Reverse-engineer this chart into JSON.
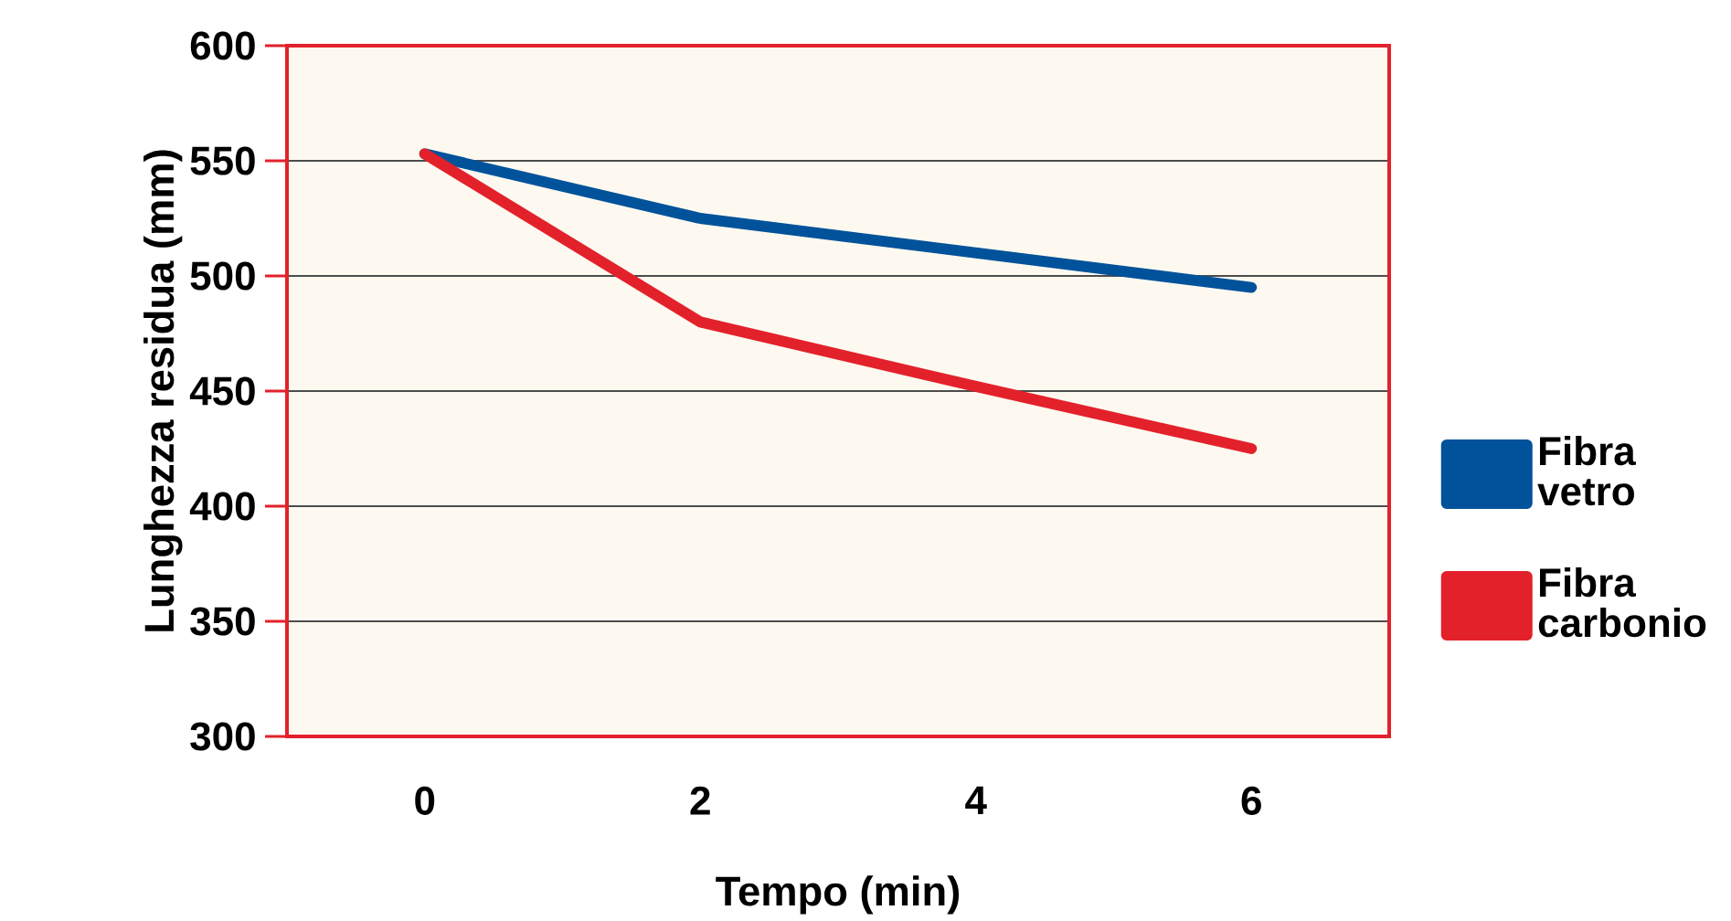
{
  "chart_data": {
    "type": "line",
    "xlabel": "Tempo (min)",
    "ylabel": "Lunghezza residua (mm)",
    "categories": [
      "0",
      "2",
      "4",
      "6"
    ],
    "series": [
      {
        "name": "Fibra vetro",
        "color": "#00529b",
        "values": [
          553,
          525,
          510,
          495
        ]
      },
      {
        "name": "Fibra carbonio",
        "color": "#e3212b",
        "values": [
          553,
          480,
          452,
          425
        ]
      }
    ],
    "ylim": [
      300,
      600
    ],
    "yticks": [
      300,
      350,
      400,
      450,
      500,
      550,
      600
    ],
    "grid": "y",
    "legend": "right",
    "marker": "none",
    "line_style": "solid"
  }
}
